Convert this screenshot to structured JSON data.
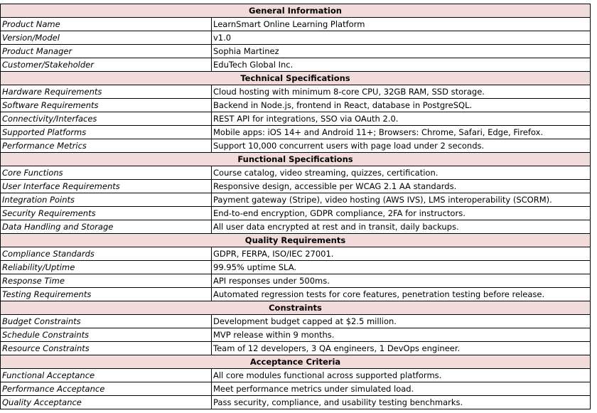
{
  "sections": [
    {
      "title": "General Information",
      "rows": [
        [
          "Product Name",
          "LearnSmart Online Learning Platform"
        ],
        [
          "Version/Model",
          "v1.0"
        ],
        [
          "Product Manager",
          "Sophia Martinez"
        ],
        [
          "Customer/Stakeholder",
          "EduTech Global Inc."
        ]
      ]
    },
    {
      "title": "Technical Specifications",
      "rows": [
        [
          "Hardware Requirements",
          "Cloud hosting with minimum 8-core CPU, 32GB RAM, SSD storage."
        ],
        [
          "Software Requirements",
          "Backend in Node.js, frontend in React, database in PostgreSQL."
        ],
        [
          "Connectivity/Interfaces",
          "REST API for integrations, SSO via OAuth 2.0."
        ],
        [
          "Supported Platforms",
          "Mobile apps: iOS 14+ and Android 11+; Browsers: Chrome, Safari, Edge, Firefox."
        ],
        [
          "Performance Metrics",
          "Support 10,000 concurrent users with page load under 2 seconds."
        ]
      ]
    },
    {
      "title": "Functional Specifications",
      "rows": [
        [
          "Core Functions",
          "Course catalog, video streaming, quizzes, certification."
        ],
        [
          "User Interface Requirements",
          "Responsive design, accessible per WCAG 2.1 AA standards."
        ],
        [
          "Integration Points",
          "Payment gateway (Stripe), video hosting (AWS IVS), LMS interoperability (SCORM)."
        ],
        [
          "Security Requirements",
          "End-to-end encryption, GDPR compliance, 2FA for instructors."
        ],
        [
          "Data Handling and Storage",
          "All user data encrypted at rest and in transit, daily backups."
        ]
      ]
    },
    {
      "title": "Quality Requirements",
      "rows": [
        [
          "Compliance Standards",
          "GDPR, FERPA, ISO/IEC 27001."
        ],
        [
          "Reliability/Uptime",
          "99.95% uptime SLA."
        ],
        [
          "Response Time",
          "API responses under 500ms."
        ],
        [
          "Testing Requirements",
          "Automated regression tests for core features, penetration testing before release."
        ]
      ]
    },
    {
      "title": "Constraints",
      "rows": [
        [
          "Budget Constraints",
          "Development budget capped at $2.5 million."
        ],
        [
          "Schedule Constraints",
          "MVP release within 9 months."
        ],
        [
          "Resource Constraints",
          "Team of 12 developers, 3 QA engineers, 1 DevOps engineer."
        ]
      ]
    },
    {
      "title": "Acceptance Criteria",
      "rows": [
        [
          "Functional Acceptance",
          "All core modules functional across supported platforms."
        ],
        [
          "Performance Acceptance",
          "Meet performance metrics under simulated load."
        ],
        [
          "Quality Acceptance",
          "Pass security, compliance, and usability testing benchmarks."
        ]
      ]
    }
  ]
}
